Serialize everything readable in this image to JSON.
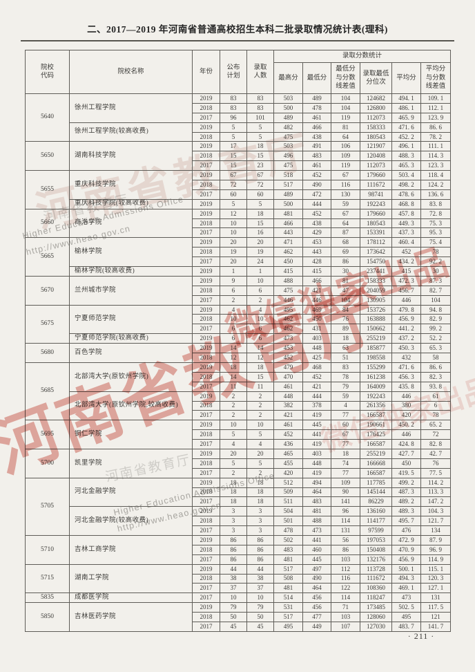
{
  "page": {
    "title": "二、2017—2019 年河南省普通高校招生本科二批录取情况统计表(理科)",
    "page_number": "· 211 ·"
  },
  "colors": {
    "paper": "#f2f0eb",
    "watermark_red": "#c93e30",
    "table_line": "#5e5c57"
  },
  "watermarks": {
    "red_main": "河南省教育厅",
    "red_sub": "微信独家出品",
    "red_faint_top": "河南省教育厅",
    "red_faint_bottom": "微信独家出品",
    "grey_org": "Higher Education Admissions Office",
    "grey_url": "http://www.heao.gov.cn",
    "grey_seal": "河南省教育厅"
  },
  "table": {
    "headers": {
      "code": "院校\n代码",
      "name": "院校名称",
      "year": "年份",
      "plan": "公布\n计划",
      "admitted": "录取\n人数",
      "stats_group": "录取分数统计",
      "max": "最高分",
      "min": "最低分",
      "min_diff": "最低分\n与分数\n线差值",
      "rank": "录取最低\n分位次",
      "avg": "平均分",
      "avg_diff": "平均分\n与分数\n线差值"
    },
    "groups": [
      {
        "code": "5640",
        "schools": [
          {
            "name": "徐州工程学院",
            "rows": [
              [
                "2019",
                "83",
                "83",
                "503",
                "489",
                "104",
                "124682",
                "494. 1",
                "109. 1"
              ],
              [
                "2018",
                "83",
                "83",
                "500",
                "478",
                "104",
                "126800",
                "486. 1",
                "112. 1"
              ],
              [
                "2017",
                "96",
                "101",
                "489",
                "461",
                "119",
                "112073",
                "465. 9",
                "123. 9"
              ]
            ]
          },
          {
            "name": "徐州工程学院(较高收费)",
            "rows": [
              [
                "2019",
                "5",
                "5",
                "482",
                "466",
                "81",
                "158333",
                "471. 6",
                "86. 6"
              ],
              [
                "2018",
                "5",
                "5",
                "475",
                "438",
                "64",
                "180543",
                "452. 2",
                "78. 2"
              ]
            ]
          }
        ]
      },
      {
        "code": "5650",
        "schools": [
          {
            "name": "湖南科技学院",
            "rows": [
              [
                "2019",
                "17",
                "18",
                "503",
                "491",
                "106",
                "121907",
                "496. 1",
                "111. 1"
              ],
              [
                "2018",
                "15",
                "15",
                "496",
                "483",
                "109",
                "120408",
                "488. 3",
                "114. 3"
              ],
              [
                "2017",
                "15",
                "23",
                "475",
                "461",
                "119",
                "112073",
                "465. 3",
                "123. 3"
              ]
            ]
          }
        ]
      },
      {
        "code": "5655",
        "schools": [
          {
            "name": "重庆科技学院",
            "rows": [
              [
                "2019",
                "67",
                "67",
                "518",
                "452",
                "67",
                "179660",
                "503. 4",
                "118. 4"
              ],
              [
                "2018",
                "72",
                "72",
                "517",
                "490",
                "116",
                "111672",
                "498. 2",
                "124. 2"
              ],
              [
                "2017",
                "60",
                "60",
                "489",
                "472",
                "130",
                "98741",
                "478. 6",
                "136. 6"
              ]
            ]
          },
          {
            "name": "重庆科技学院(较高收费)",
            "rows": [
              [
                "2019",
                "5",
                "5",
                "500",
                "444",
                "59",
                "192243",
                "468. 8",
                "83. 8"
              ]
            ]
          }
        ]
      },
      {
        "code": "5660",
        "schools": [
          {
            "name": "商洛学院",
            "rows": [
              [
                "2019",
                "12",
                "18",
                "481",
                "452",
                "67",
                "179660",
                "457. 8",
                "72. 8"
              ],
              [
                "2018",
                "10",
                "15",
                "466",
                "438",
                "64",
                "180543",
                "449. 3",
                "75. 3"
              ],
              [
                "2017",
                "10",
                "16",
                "443",
                "429",
                "87",
                "153391",
                "437. 3",
                "95. 3"
              ]
            ]
          }
        ]
      },
      {
        "code": "5665",
        "schools": [
          {
            "name": "榆林学院",
            "rows": [
              [
                "2019",
                "20",
                "20",
                "471",
                "453",
                "68",
                "178112",
                "460. 4",
                "75. 4"
              ],
              [
                "2018",
                "19",
                "19",
                "462",
                "443",
                "69",
                "173642",
                "452",
                "78"
              ],
              [
                "2017",
                "20",
                "24",
                "450",
                "428",
                "86",
                "154750",
                "434. 2",
                "92. 2"
              ]
            ]
          },
          {
            "name": "榆林学院(较高收费)",
            "rows": [
              [
                "2019",
                "1",
                "1",
                "415",
                "415",
                "30",
                "237441",
                "415",
                "30"
              ]
            ]
          }
        ]
      },
      {
        "code": "5670",
        "schools": [
          {
            "name": "兰州城市学院",
            "rows": [
              [
                "2019",
                "9",
                "10",
                "488",
                "466",
                "81",
                "158333",
                "472. 3",
                "87. 3"
              ],
              [
                "2018",
                "6",
                "6",
                "475",
                "421",
                "47",
                "204059",
                "456. 7",
                "82. 7"
              ],
              [
                "2017",
                "2",
                "2",
                "446",
                "446",
                "104",
                "130905",
                "446",
                "104"
              ]
            ]
          }
        ]
      },
      {
        "code": "5675",
        "schools": [
          {
            "name": "宁夏师范学院",
            "rows": [
              [
                "2019",
                "4",
                "4",
                "495",
                "469",
                "84",
                "153726",
                "479. 8",
                "94. 8"
              ],
              [
                "2018",
                "10",
                "10",
                "462",
                "450",
                "76",
                "163888",
                "456. 9",
                "82. 9"
              ],
              [
                "2017",
                "6",
                "6",
                "462",
                "431",
                "89",
                "150662",
                "441. 2",
                "99. 2"
              ]
            ]
          },
          {
            "name": "宁夏师范学院(较高收费)",
            "rows": [
              [
                "2019",
                "6",
                "6",
                "473",
                "403",
                "18",
                "255219",
                "437. 2",
                "52. 2"
              ]
            ]
          }
        ]
      },
      {
        "code": "5680",
        "schools": [
          {
            "name": "百色学院",
            "rows": [
              [
                "2019",
                "14",
                "14",
                "453",
                "448",
                "63",
                "185877",
                "450. 3",
                "65. 3"
              ],
              [
                "2018",
                "12",
                "12",
                "452",
                "425",
                "51",
                "198558",
                "432",
                "58"
              ]
            ]
          }
        ]
      },
      {
        "code": "5685",
        "schools": [
          {
            "name": "北部湾大学(原钦州学院)",
            "rows": [
              [
                "2019",
                "18",
                "18",
                "479",
                "468",
                "83",
                "155299",
                "471. 6",
                "86. 6"
              ],
              [
                "2018",
                "14",
                "15",
                "470",
                "452",
                "78",
                "161238",
                "456. 3",
                "82. 3"
              ],
              [
                "2017",
                "11",
                "11",
                "461",
                "421",
                "79",
                "164009",
                "435. 8",
                "93. 8"
              ]
            ]
          },
          {
            "name": "北部湾大学(原钦州学院,较高收费)",
            "rows": [
              [
                "2019",
                "2",
                "2",
                "448",
                "444",
                "59",
                "192243",
                "446",
                "61"
              ],
              [
                "2018",
                "2",
                "2",
                "382",
                "378",
                "4",
                "261356",
                "380",
                "6"
              ],
              [
                "2017",
                "2",
                "2",
                "421",
                "419",
                "77",
                "166587",
                "420",
                "78"
              ]
            ]
          }
        ]
      },
      {
        "code": "5695",
        "schools": [
          {
            "name": "铜仁学院",
            "rows": [
              [
                "2019",
                "10",
                "10",
                "461",
                "445",
                "60",
                "190661",
                "450. 2",
                "65. 2"
              ],
              [
                "2018",
                "5",
                "5",
                "452",
                "441",
                "67",
                "176425",
                "446",
                "72"
              ],
              [
                "2017",
                "4",
                "4",
                "436",
                "419",
                "77",
                "166587",
                "424. 8",
                "82. 8"
              ]
            ]
          }
        ]
      },
      {
        "code": "5700",
        "schools": [
          {
            "name": "凯里学院",
            "rows": [
              [
                "2019",
                "20",
                "20",
                "465",
                "403",
                "18",
                "255219",
                "427. 7",
                "42. 7"
              ],
              [
                "2018",
                "5",
                "5",
                "455",
                "448",
                "74",
                "166668",
                "450",
                "76"
              ],
              [
                "2017",
                "2",
                "2",
                "420",
                "419",
                "77",
                "166587",
                "419. 5",
                "77. 5"
              ]
            ]
          }
        ]
      },
      {
        "code": "5705",
        "schools": [
          {
            "name": "河北金融学院",
            "rows": [
              [
                "2019",
                "18",
                "18",
                "512",
                "494",
                "109",
                "117785",
                "499. 2",
                "114. 2"
              ],
              [
                "2018",
                "18",
                "18",
                "509",
                "464",
                "90",
                "145144",
                "487. 3",
                "113. 3"
              ],
              [
                "2017",
                "18",
                "18",
                "511",
                "483",
                "141",
                "86229",
                "489. 2",
                "147. 2"
              ]
            ]
          },
          {
            "name": "河北金融学院(较高收费)",
            "rows": [
              [
                "2019",
                "3",
                "3",
                "504",
                "481",
                "96",
                "136160",
                "489. 3",
                "104. 3"
              ],
              [
                "2018",
                "3",
                "3",
                "501",
                "488",
                "114",
                "114177",
                "495. 7",
                "121. 7"
              ],
              [
                "2017",
                "3",
                "3",
                "478",
                "473",
                "131",
                "97599",
                "476",
                "134"
              ]
            ]
          }
        ]
      },
      {
        "code": "5710",
        "schools": [
          {
            "name": "吉林工商学院",
            "rows": [
              [
                "2019",
                "86",
                "86",
                "502",
                "441",
                "56",
                "197053",
                "472. 9",
                "87. 9"
              ],
              [
                "2018",
                "86",
                "86",
                "483",
                "460",
                "86",
                "150408",
                "470. 9",
                "96. 9"
              ],
              [
                "2017",
                "86",
                "86",
                "481",
                "445",
                "103",
                "132176",
                "456. 9",
                "114. 9"
              ]
            ]
          }
        ]
      },
      {
        "code": "5715",
        "schools": [
          {
            "name": "湖南工学院",
            "rows": [
              [
                "2019",
                "44",
                "44",
                "517",
                "497",
                "112",
                "113728",
                "500. 1",
                "115. 1"
              ],
              [
                "2018",
                "38",
                "38",
                "508",
                "490",
                "116",
                "111672",
                "494. 3",
                "120. 3"
              ],
              [
                "2017",
                "37",
                "37",
                "481",
                "464",
                "122",
                "108360",
                "469. 1",
                "127. 1"
              ]
            ]
          }
        ]
      },
      {
        "code": "5835",
        "schools": [
          {
            "name": "成都医学院",
            "rows": [
              [
                "2017",
                "10",
                "10",
                "514",
                "456",
                "114",
                "118247",
                "473",
                "131"
              ]
            ]
          }
        ]
      },
      {
        "code": "5850",
        "schools": [
          {
            "name": "吉林医药学院",
            "rows": [
              [
                "2019",
                "79",
                "79",
                "531",
                "456",
                "71",
                "173485",
                "502. 5",
                "117. 5"
              ],
              [
                "2018",
                "50",
                "50",
                "517",
                "477",
                "103",
                "128060",
                "495",
                "121"
              ],
              [
                "2017",
                "45",
                "45",
                "495",
                "449",
                "107",
                "127030",
                "483. 7",
                "141. 7"
              ]
            ]
          }
        ]
      }
    ]
  }
}
